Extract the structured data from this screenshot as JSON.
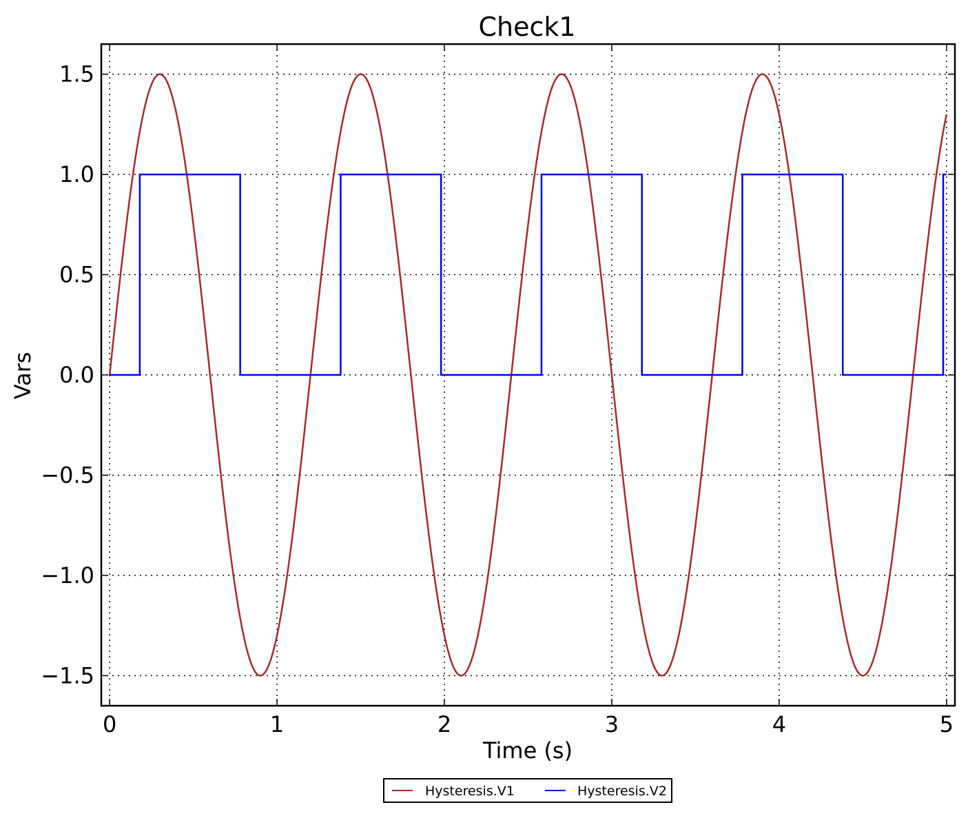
{
  "chart_data": {
    "type": "line",
    "title": "Check1",
    "xlabel": "Time (s)",
    "ylabel": "Vars",
    "xlim": [
      -0.05,
      5.05
    ],
    "ylim": [
      -1.65,
      1.65
    ],
    "xticks": [
      0,
      1,
      2,
      3,
      4,
      5
    ],
    "xtick_labels": [
      "0",
      "1",
      "2",
      "3",
      "4",
      "5"
    ],
    "yticks": [
      -1.5,
      -1.0,
      -0.5,
      0.0,
      0.5,
      1.0,
      1.5
    ],
    "ytick_labels": [
      "−1.5",
      "−1.0",
      "−0.5",
      "0.0",
      "0.5",
      "1.0",
      "1.5"
    ],
    "grid": true,
    "legend_position": "bottom-center, outside plot",
    "series": [
      {
        "name": "Hysteresis.V1",
        "color": "#a52a2a",
        "function": "1.5*sin(2*pi*t/1.2)",
        "amplitude": 1.5,
        "period": 1.2,
        "t_range": [
          0,
          5
        ]
      },
      {
        "name": "Hysteresis.V2",
        "color": "#0000ee",
        "step": true,
        "x": [
          0,
          0.18,
          0.18,
          0.78,
          0.78,
          1.38,
          1.38,
          1.98,
          1.98,
          2.58,
          2.58,
          3.18,
          3.18,
          3.78,
          3.78,
          4.38,
          4.38,
          4.98,
          4.98,
          5.0
        ],
        "y": [
          0,
          0,
          1,
          1,
          0,
          0,
          1,
          1,
          0,
          0,
          1,
          1,
          0,
          0,
          1,
          1,
          0,
          0,
          1,
          1
        ]
      }
    ]
  }
}
